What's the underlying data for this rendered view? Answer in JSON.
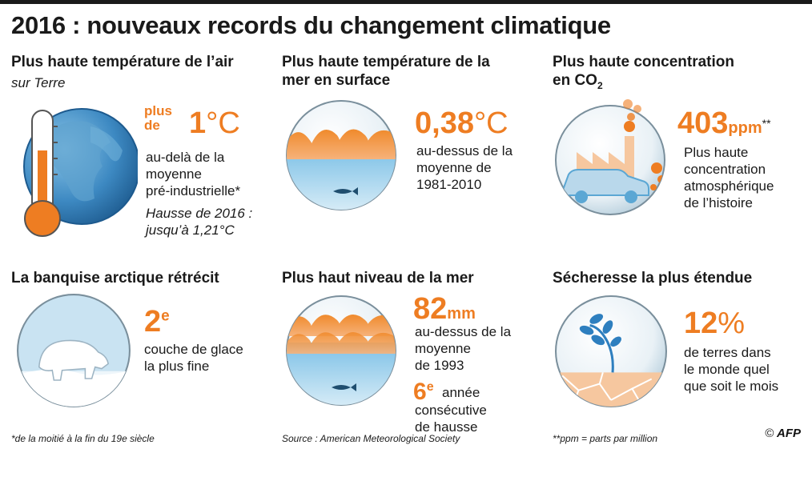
{
  "title": "2016 : nouveaux records du changement climatique",
  "panels": {
    "air": {
      "title": "Plus haute température de l’air",
      "subtitle": "sur Terre",
      "prefix": "plus\nde",
      "value": "1",
      "unit": "°C",
      "desc": "au-delà de la\nmoyenne\npré-industrielle*",
      "note": "Hausse de 2016 :\njusqu’à 1,21°C",
      "icons": [
        "globe-icon",
        "thermometer-icon"
      ]
    },
    "sea_temp": {
      "title": "Plus haute température de la\nmer en surface",
      "value": "0,38",
      "unit": "°C",
      "desc": "au-dessus de la\nmoyenne de\n1981-2010",
      "icons": [
        "wave-icon",
        "fish-icon"
      ]
    },
    "co2": {
      "title_a": "Plus haute concentration",
      "title_b": "en CO",
      "title_sub": "2",
      "value": "403",
      "unit": "ppm",
      "suffix": "**",
      "desc": "Plus haute\nconcentration\natmosphérique\nde l’histoire",
      "icons": [
        "factory-icon",
        "car-icon",
        "smoke-icon"
      ]
    },
    "ice": {
      "title": "La banquise arctique rétrécit",
      "value": "2",
      "sup": "e",
      "desc": "couche de glace\nla plus fine",
      "icons": [
        "polar-bear-icon"
      ]
    },
    "sea_level": {
      "title": "Plus haut niveau de la mer",
      "value": "82",
      "unit": "mm",
      "desc": "au-dessus de la\nmoyenne\nde 1993",
      "value2": "6",
      "sup2": "e",
      "desc2_a": "année",
      "desc2": "consécutive\nde hausse",
      "icons": [
        "wave-icon",
        "fish-icon"
      ]
    },
    "drought": {
      "title": "Sécheresse la plus étendue",
      "value": "12",
      "unit": "%",
      "desc": "de terres dans\nle monde quel\nque soit le mois",
      "icons": [
        "plant-icon",
        "cracked-earth-icon"
      ]
    }
  },
  "footnotes": {
    "left": "*de la moitié à la fin du 19e siècle",
    "middle": "Source : American Meteorological Society",
    "right": "**ppm = parts par million"
  },
  "credit": {
    "copyright": "©",
    "agency": "AFP"
  },
  "colors": {
    "accent": "#ee7d22",
    "blue": "#5ba7d4",
    "light_blue": "#cfe6f3",
    "dark": "#1a1a1a"
  }
}
